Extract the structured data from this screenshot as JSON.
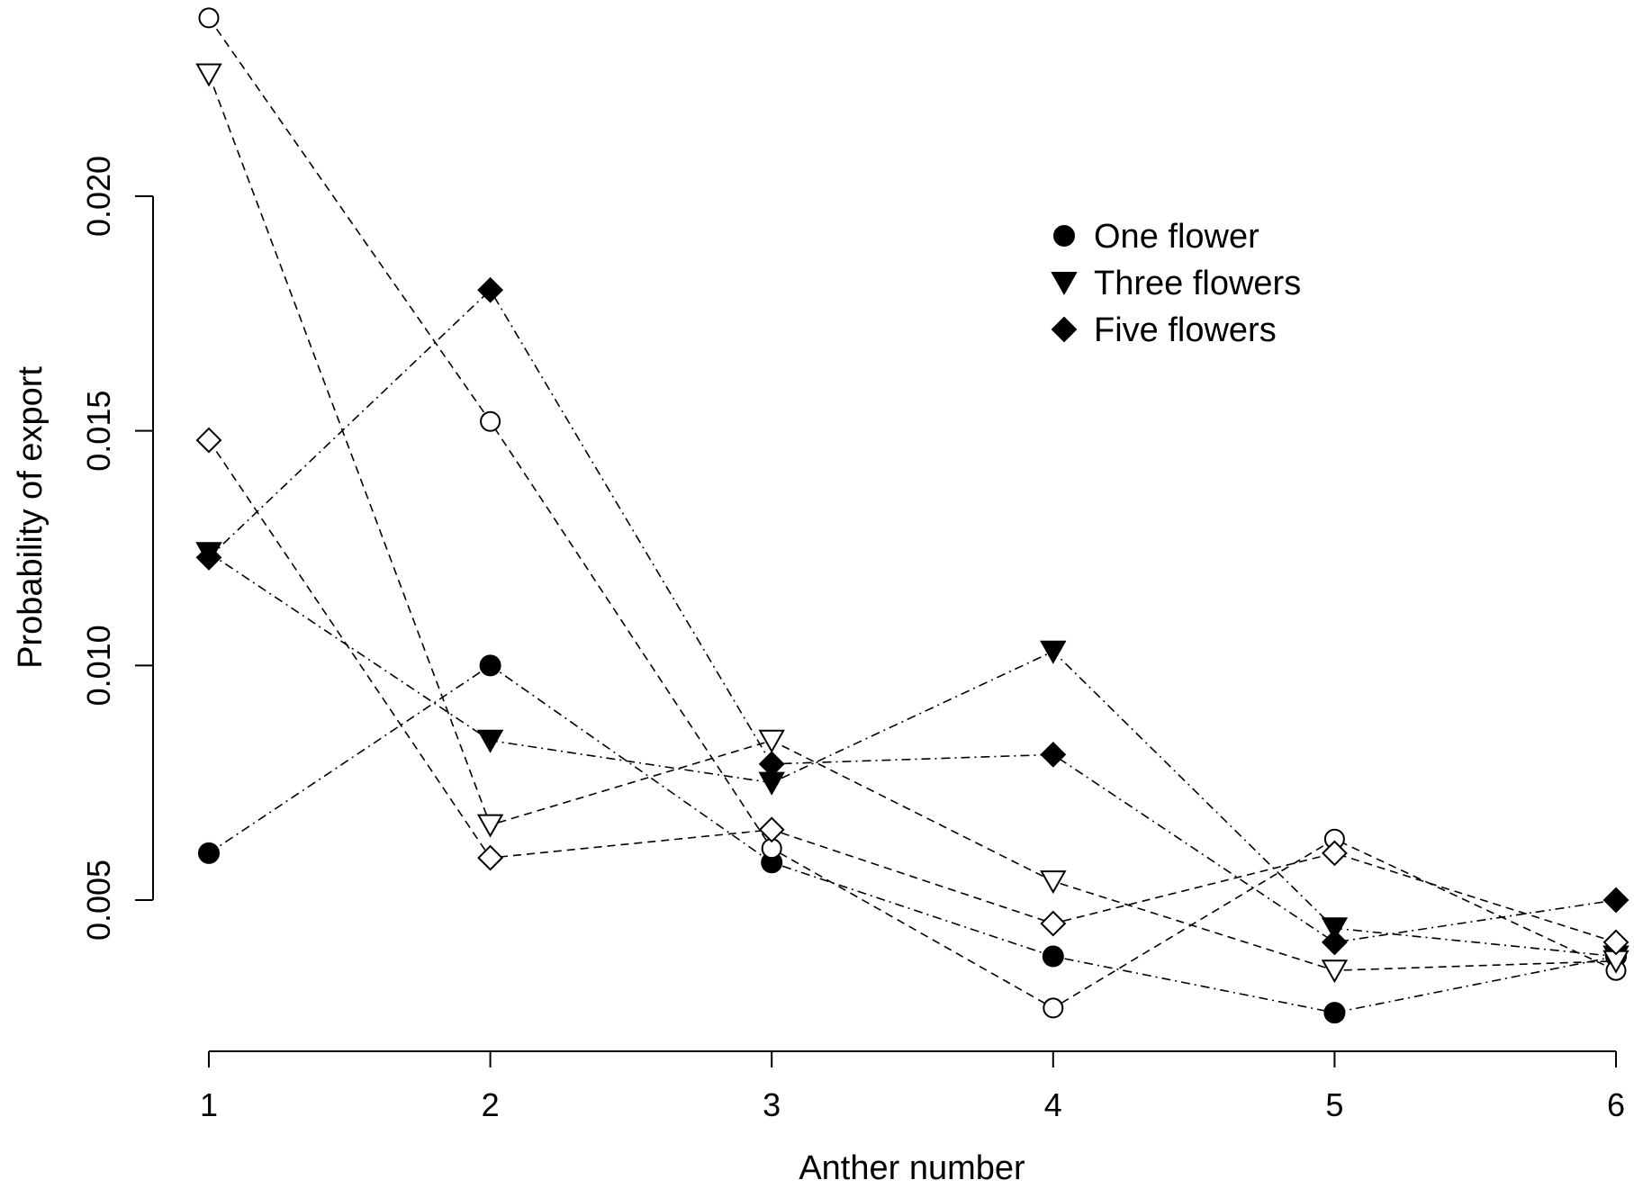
{
  "chart_data": {
    "type": "line",
    "xlabel": "Anther number",
    "ylabel": "Probability of export",
    "x": [
      1,
      2,
      3,
      4,
      5,
      6
    ],
    "xlim": [
      1,
      6
    ],
    "ylim": [
      0.005,
      0.02
    ],
    "xticks": [
      "1",
      "2",
      "3",
      "4",
      "5",
      "6"
    ],
    "yticks": [
      "0.005",
      "0.010",
      "0.015",
      "0.020"
    ],
    "grid": false,
    "legend": {
      "position": "top-right",
      "entries": [
        {
          "label": "One flower",
          "marker": "circle"
        },
        {
          "label": "Three flowers",
          "marker": "triangle-down"
        },
        {
          "label": "Five flowers",
          "marker": "diamond"
        }
      ]
    },
    "series": [
      {
        "marker": "circle",
        "filled": true,
        "line": "dotdash",
        "values": [
          0.006,
          0.01,
          0.0058,
          0.0038,
          0.0026,
          0.0038
        ]
      },
      {
        "marker": "triangle-down",
        "filled": true,
        "line": "dotdash",
        "values": [
          0.0124,
          0.0084,
          0.0075,
          0.0103,
          0.0044,
          0.0038
        ]
      },
      {
        "marker": "diamond",
        "filled": true,
        "line": "dotdash",
        "values": [
          0.0123,
          0.018,
          0.0079,
          0.0081,
          0.0041,
          0.005
        ]
      },
      {
        "marker": "circle",
        "filled": false,
        "line": "dashed",
        "values": [
          0.0238,
          0.0152,
          0.0061,
          0.0027,
          0.0063,
          0.0035
        ]
      },
      {
        "marker": "triangle-down",
        "filled": false,
        "line": "dashed",
        "values": [
          0.0226,
          0.0066,
          0.0084,
          0.0054,
          0.0035,
          0.0037
        ]
      },
      {
        "marker": "diamond",
        "filled": false,
        "line": "dashed",
        "values": [
          0.0148,
          0.0059,
          0.0065,
          0.0045,
          0.006,
          0.0041
        ]
      }
    ]
  }
}
